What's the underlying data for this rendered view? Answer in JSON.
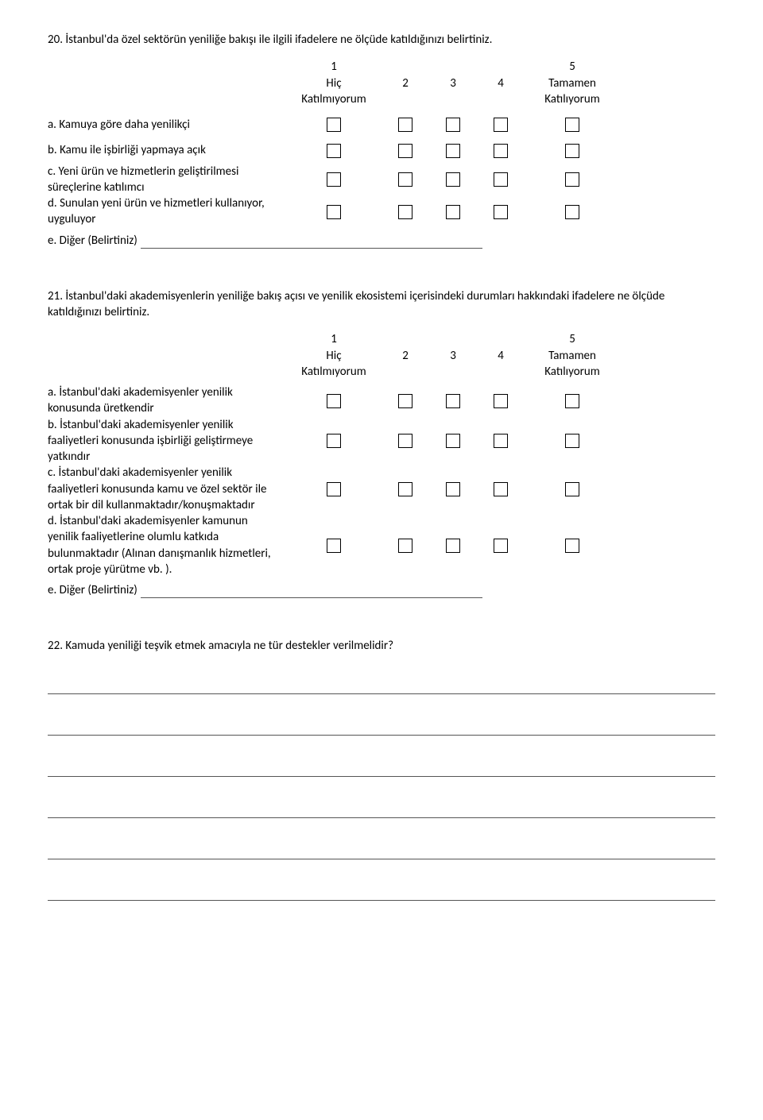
{
  "q20": {
    "number": "20.",
    "text": "İstanbul'da özel sektörün yeniliğe bakışı ile ilgili ifadelere ne ölçüde katıldığınızı belirtiniz.",
    "scale": {
      "col1_top": "1",
      "col1_bottom": "Hiç",
      "col1_sub": "Katılmıyorum",
      "col2": "2",
      "col3": "3",
      "col4": "4",
      "col5_top": "5",
      "col5_bottom": "Tamamen",
      "col5_sub": "Katılıyorum"
    },
    "rows": [
      {
        "prefix": "a.",
        "label": "Kamuya göre daha yenilikçi"
      },
      {
        "prefix": "b.",
        "label": "Kamu ile işbirliği yapmaya açık"
      },
      {
        "prefix": "c.",
        "label": "Yeni ürün ve hizmetlerin geliştirilmesi süreçlerine katılımcı"
      },
      {
        "prefix": "d.",
        "label": "Sunulan yeni ürün ve hizmetleri kullanıyor, uyguluyor"
      }
    ],
    "other_prefix": "e.",
    "other_label": "Diğer (Belirtiniz)"
  },
  "q21": {
    "number": "21.",
    "text": "İstanbul'daki akademisyenlerin yeniliğe bakış açısı ve yenilik ekosistemi içerisindeki durumları hakkındaki ifadelere ne ölçüde katıldığınızı belirtiniz.",
    "scale": {
      "col1_top": "1",
      "col1_bottom": "Hiç",
      "col1_sub": "Katılmıyorum",
      "col2": "2",
      "col3": "3",
      "col4": "4",
      "col5_top": "5",
      "col5_bottom": "Tamamen",
      "col5_sub": "Katılıyorum"
    },
    "rows": [
      {
        "prefix": "a.",
        "label": "İstanbul'daki akademisyenler yenilik konusunda üretkendir"
      },
      {
        "prefix": "b.",
        "label": "İstanbul'daki akademisyenler yenilik faaliyetleri konusunda işbirliği geliştirmeye yatkındır"
      },
      {
        "prefix": "c.",
        "label": "İstanbul'daki akademisyenler yenilik faaliyetleri konusunda kamu ve özel sektör ile ortak bir dil kullanmaktadır/konuşmaktadır"
      },
      {
        "prefix": "d.",
        "label": "İstanbul'daki akademisyenler kamunun yenilik faaliyetlerine olumlu katkıda bulunmaktadır (Alınan danışmanlık hizmetleri, ortak proje yürütme vb. )."
      }
    ],
    "other_prefix": "e.",
    "other_label": "Diğer (Belirtiniz)"
  },
  "q22": {
    "number": "22.",
    "text": "Kamuda yeniliği teşvik etmek amacıyla ne tür destekler verilmelidir?",
    "blank_lines": 6
  }
}
